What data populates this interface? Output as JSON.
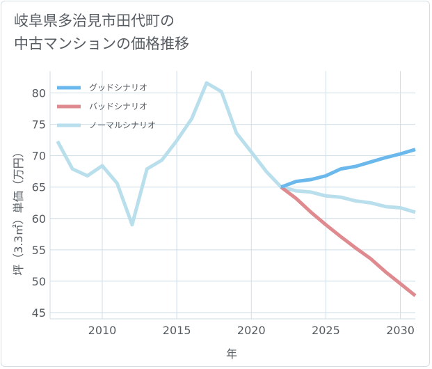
{
  "title": {
    "line1": "岐阜県多治見市田代町の",
    "line2": "中古マンションの価格推移"
  },
  "colors": {
    "good": "#6ab8ec",
    "bad": "#de8a8f",
    "normal": "#b9dfec",
    "grid": "#cfdde6",
    "text": "#555b61"
  },
  "chart_data": {
    "type": "line",
    "title": "岐阜県多治見市田代町の中古マンションの価格推移",
    "xlabel": "年",
    "ylabel": "坪（3.3㎡）単価（万円）",
    "xlim": [
      2006.5,
      2031
    ],
    "ylim": [
      44,
      83.5
    ],
    "x_ticks": [
      2010,
      2015,
      2020,
      2025,
      2030
    ],
    "y_ticks": [
      45,
      50,
      55,
      60,
      65,
      70,
      75,
      80
    ],
    "grid": true,
    "legend_position": "top-left",
    "series": [
      {
        "name": "グッドシナリオ",
        "color": "#6ab8ec",
        "x": [
          2022,
          2023,
          2024,
          2025,
          2026,
          2027,
          2028,
          2029,
          2030,
          2031
        ],
        "y": [
          65.0,
          65.9,
          66.2,
          66.8,
          67.9,
          68.3,
          69.0,
          69.7,
          70.3,
          71.0
        ]
      },
      {
        "name": "バッドシナリオ",
        "color": "#de8a8f",
        "x": [
          2022,
          2023,
          2024,
          2025,
          2026,
          2027,
          2028,
          2029,
          2030,
          2031
        ],
        "y": [
          65.0,
          63.2,
          61.0,
          59.0,
          57.1,
          55.3,
          53.6,
          51.5,
          49.6,
          47.7
        ]
      },
      {
        "name": "ノーマルシナリオ",
        "color": "#b9dfec",
        "x": [
          2007,
          2008,
          2009,
          2010,
          2011,
          2012,
          2013,
          2014,
          2015,
          2016,
          2017,
          2018,
          2019,
          2020,
          2021,
          2022,
          2023,
          2024,
          2025,
          2026,
          2027,
          2028,
          2029,
          2030,
          2031
        ],
        "y": [
          72.3,
          67.9,
          66.8,
          68.4,
          65.6,
          59.0,
          67.9,
          69.3,
          72.4,
          75.9,
          81.6,
          80.2,
          73.6,
          70.6,
          67.5,
          65.0,
          64.4,
          64.2,
          63.6,
          63.4,
          62.8,
          62.5,
          61.9,
          61.7,
          61.0
        ]
      }
    ]
  }
}
